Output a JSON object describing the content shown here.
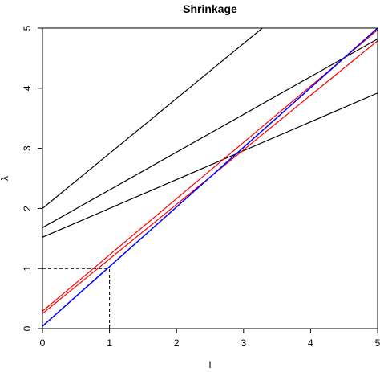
{
  "chart_data": {
    "type": "line",
    "title": "Shrinkage",
    "xlabel": "l",
    "ylabel": "λ",
    "xlim": [
      0,
      5
    ],
    "ylim": [
      0,
      5
    ],
    "x_ticks": [
      "0",
      "1",
      "2",
      "3",
      "4",
      "5"
    ],
    "y_ticks": [
      "0",
      "1",
      "2",
      "3",
      "4",
      "5"
    ],
    "grid": false,
    "series": [
      {
        "color": "#000000",
        "x": [
          0,
          3.28
        ],
        "y": [
          2.0,
          5.0
        ]
      },
      {
        "color": "#000000",
        "x": [
          0,
          5
        ],
        "y": [
          1.68,
          4.82
        ]
      },
      {
        "color": "#000000",
        "x": [
          0,
          5
        ],
        "y": [
          1.52,
          3.92
        ]
      },
      {
        "color": "#ff0000",
        "x": [
          0,
          5
        ],
        "y": [
          0.25,
          4.79
        ]
      },
      {
        "color": "#ff0000",
        "x": [
          0,
          5
        ],
        "y": [
          0.29,
          4.97
        ]
      },
      {
        "color": "#0000ff",
        "x": [
          0,
          5
        ],
        "y": [
          0.04,
          5.0
        ]
      }
    ],
    "reference_lines": [
      {
        "style": "dashed",
        "color": "#000000",
        "x": [
          0,
          1
        ],
        "y": [
          1,
          1
        ]
      },
      {
        "style": "dashed",
        "color": "#000000",
        "x": [
          1,
          1
        ],
        "y": [
          0,
          1
        ]
      }
    ]
  }
}
